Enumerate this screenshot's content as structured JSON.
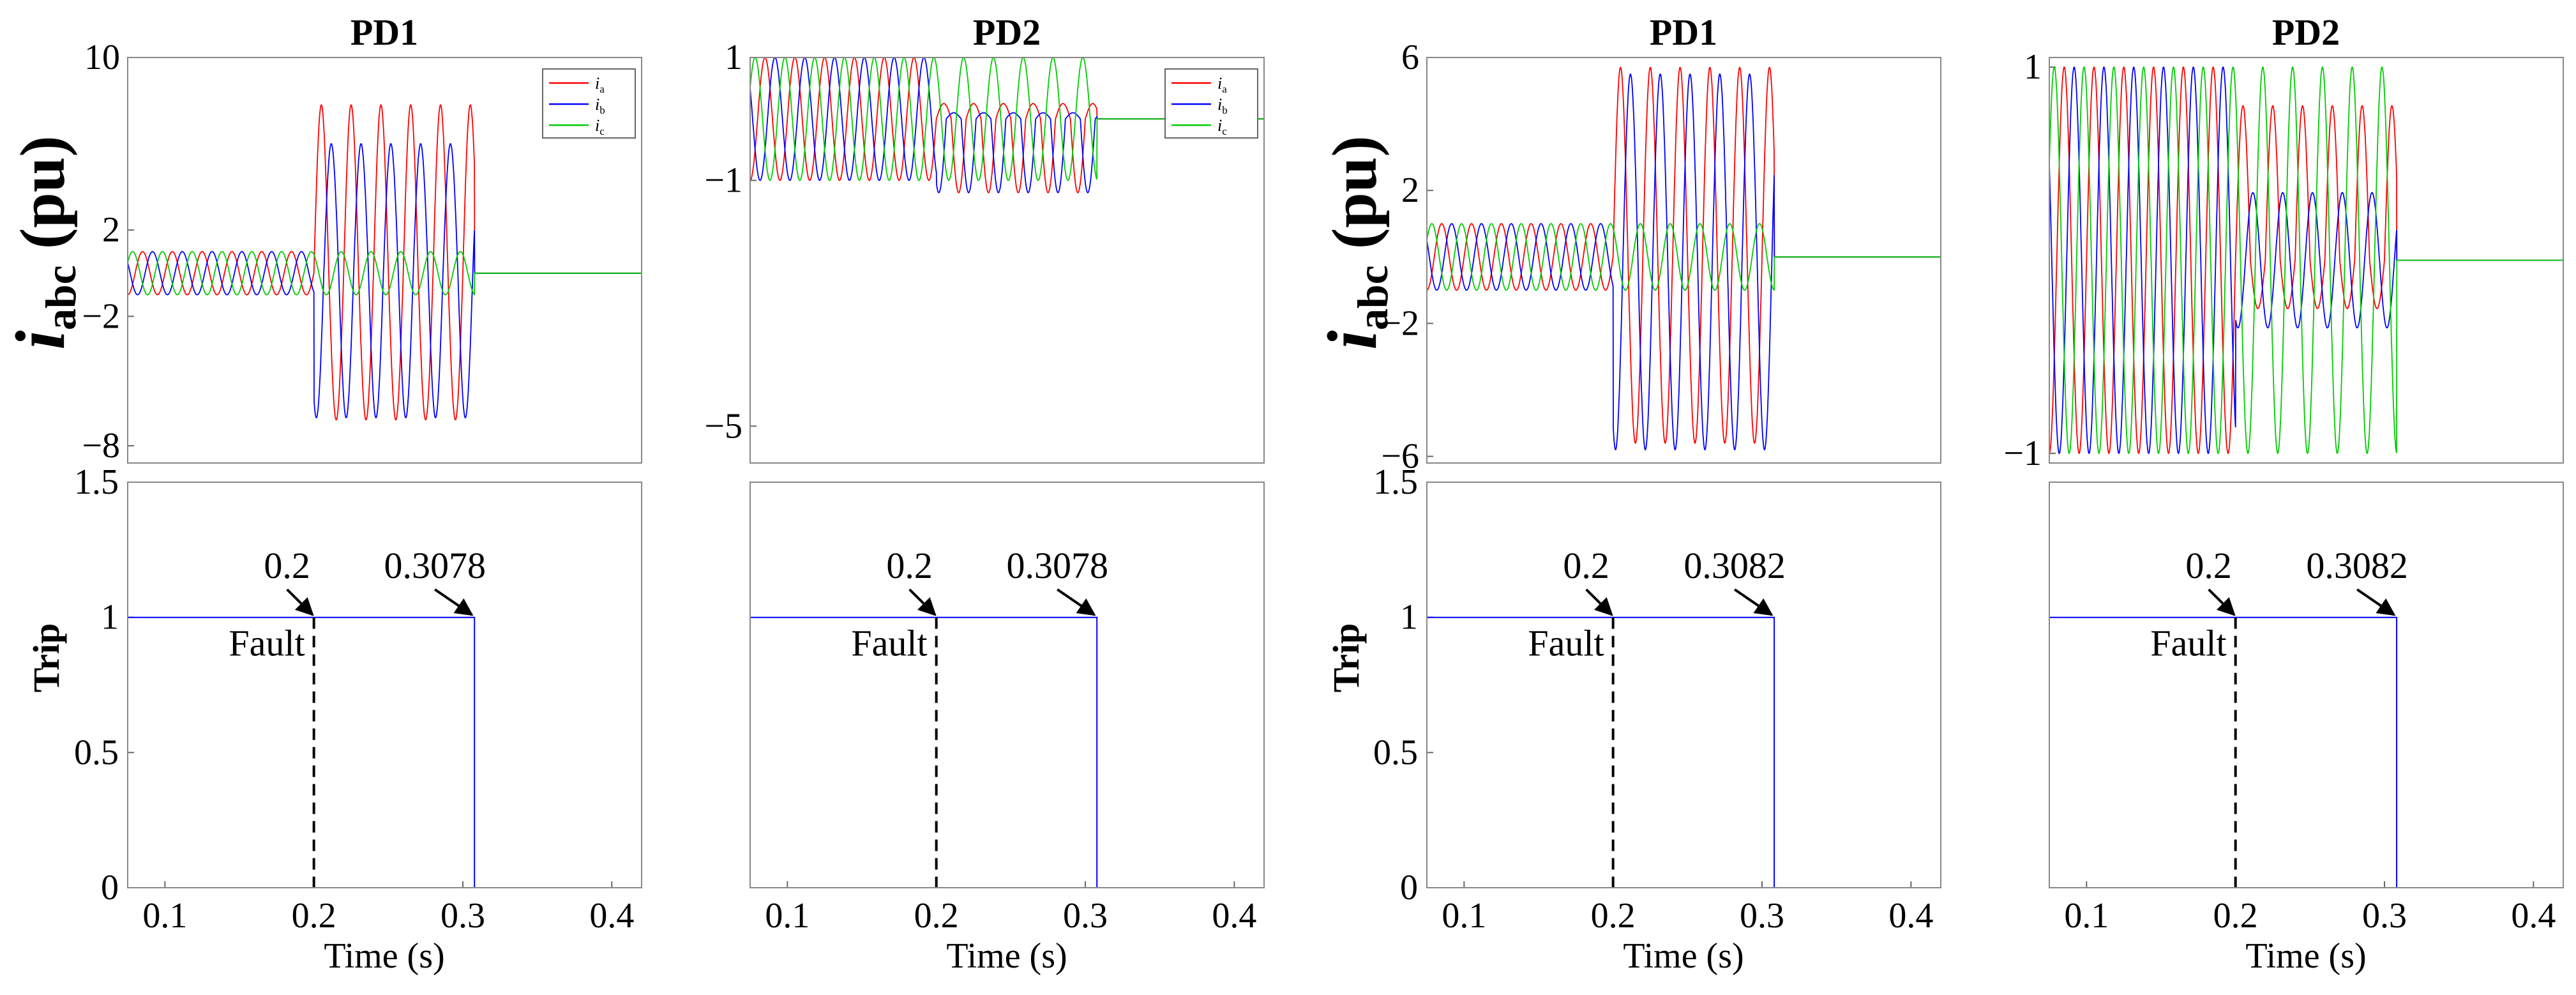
{
  "figure": {
    "ylabel_current": {
      "main": "i",
      "sub": "abc",
      "unit": " (pu)"
    },
    "ylabel_trip": "Trip",
    "xlabel": "Time (s)",
    "legend": [
      {
        "main": "i",
        "sub": "a",
        "color": "#ff0000"
      },
      {
        "main": "i",
        "sub": "b",
        "color": "#0000ff"
      },
      {
        "main": "i",
        "sub": "c",
        "color": "#00cc00"
      }
    ],
    "fault_label": "Fault",
    "colors": {
      "ia": "#ff0000",
      "ib": "#0000ff",
      "ic": "#00cc00",
      "trip": "#0000ff"
    }
  },
  "chart_data": [
    {
      "type": "line",
      "title": "PD1",
      "xlim": [
        0.075,
        0.42
      ],
      "ylim": [
        -8.8,
        10
      ],
      "yticks": [
        10,
        2,
        -2,
        -8
      ],
      "ytick_labels": [
        "10",
        "2",
        "−2",
        "−8"
      ],
      "legend": true,
      "series": [
        {
          "name": "ia",
          "pre_amp": 1.0,
          "fault_peak": 7.8,
          "fault_trough": -6.8,
          "fault_start": 0.2,
          "clear_time": 0.3078,
          "freq_hz": 50
        },
        {
          "name": "ib",
          "pre_amp": 1.0,
          "fault_peak": 6.0,
          "fault_trough": -6.7,
          "fault_start": 0.2,
          "clear_time": 0.3078,
          "freq_hz": 50
        },
        {
          "name": "ic",
          "pre_amp": 1.0,
          "fault_peak": 1.0,
          "fault_trough": -1.0,
          "fault_start": 0.2,
          "clear_time": 0.3078,
          "freq_hz": 50
        }
      ]
    },
    {
      "type": "line",
      "title": "PD2",
      "xlim": [
        0.075,
        0.42
      ],
      "ylim": [
        -5.6,
        1
      ],
      "yticks": [
        1,
        -1,
        -5
      ],
      "ytick_labels": [
        "1",
        "−1",
        "−5"
      ],
      "legend": true,
      "series": [
        {
          "name": "ia",
          "pre_amp": 1.0,
          "fault_peak": 0.25,
          "fault_trough": -1.2,
          "fault_start": 0.2,
          "clear_time": 0.3078,
          "freq_hz": 50
        },
        {
          "name": "ib",
          "pre_amp": 1.0,
          "fault_peak": 0.1,
          "fault_trough": -1.2,
          "fault_start": 0.2,
          "clear_time": 0.3078,
          "freq_hz": 50
        },
        {
          "name": "ic",
          "pre_amp": 1.0,
          "fault_peak": 1.0,
          "fault_trough": -1.0,
          "fault_start": 0.2,
          "clear_time": 0.3078,
          "freq_hz": 50
        }
      ]
    },
    {
      "type": "line",
      "title": "PD1",
      "xlim": [
        0.075,
        0.42
      ],
      "ylim": [
        -6.2,
        6
      ],
      "yticks": [
        6,
        2,
        -2,
        -6
      ],
      "ytick_labels": [
        "6",
        "2",
        "−2",
        "−6"
      ],
      "legend": false,
      "series": [
        {
          "name": "ia",
          "pre_amp": 1.0,
          "fault_peak": 5.7,
          "fault_trough": -5.6,
          "fault_start": 0.2,
          "clear_time": 0.3082,
          "freq_hz": 50
        },
        {
          "name": "ib",
          "pre_amp": 1.0,
          "fault_peak": 5.5,
          "fault_trough": -5.8,
          "fault_start": 0.2,
          "clear_time": 0.3082,
          "freq_hz": 50
        },
        {
          "name": "ic",
          "pre_amp": 1.0,
          "fault_peak": 1.0,
          "fault_trough": -1.0,
          "fault_start": 0.2,
          "clear_time": 0.3082,
          "freq_hz": 50
        }
      ]
    },
    {
      "type": "line",
      "title": "PD2",
      "xlim": [
        0.075,
        0.42
      ],
      "ylim": [
        -1.05,
        1.05
      ],
      "yticks": [
        1,
        -1
      ],
      "ytick_labels": [
        "1",
        "−1"
      ],
      "legend": false,
      "series": [
        {
          "name": "ia",
          "pre_amp": 1.0,
          "fault_peak": 0.8,
          "fault_trough": -0.25,
          "fault_start": 0.2,
          "clear_time": 0.3082,
          "freq_hz": 50
        },
        {
          "name": "ib",
          "pre_amp": 1.0,
          "fault_peak": 0.35,
          "fault_trough": -0.35,
          "fault_start": 0.2,
          "clear_time": 0.3082,
          "freq_hz": 50
        },
        {
          "name": "ic",
          "pre_amp": 1.0,
          "fault_peak": 1.0,
          "fault_trough": -1.0,
          "fault_start": 0.2,
          "clear_time": 0.3082,
          "freq_hz": 50
        }
      ]
    },
    {
      "type": "line",
      "title": "",
      "xlabel": "Time (s)",
      "ylabel": "Trip",
      "xlim": [
        0.075,
        0.42
      ],
      "ylim": [
        0,
        1.5
      ],
      "xticks": [
        0.1,
        0.2,
        0.3,
        0.4
      ],
      "xtick_labels": [
        "0.1",
        "0.2",
        "0.3",
        "0.4"
      ],
      "yticks": [
        0,
        0.5,
        1,
        1.5
      ],
      "ytick_labels": [
        "0",
        "0.5",
        "1",
        "1.5"
      ],
      "series": [
        {
          "name": "Trip",
          "x": [
            0.075,
            0.3078,
            0.3078,
            0.42
          ],
          "y": [
            1,
            1,
            0,
            0
          ]
        }
      ],
      "fault_time": 0.2,
      "trip_time": 0.3078,
      "annotations": [
        "0.2",
        "0.3078",
        "Fault"
      ]
    },
    {
      "type": "line",
      "title": "",
      "xlabel": "Time (s)",
      "ylabel": "",
      "xlim": [
        0.075,
        0.42
      ],
      "ylim": [
        0,
        1.5
      ],
      "xticks": [
        0.1,
        0.2,
        0.3,
        0.4
      ],
      "xtick_labels": [
        "0.1",
        "0.2",
        "0.3",
        "0.4"
      ],
      "yticks": [],
      "ytick_labels": [],
      "series": [
        {
          "name": "Trip",
          "x": [
            0.075,
            0.3078,
            0.3078,
            0.42
          ],
          "y": [
            1,
            1,
            0,
            0
          ]
        }
      ],
      "fault_time": 0.2,
      "trip_time": 0.3078,
      "annotations": [
        "0.2",
        "0.3078",
        "Fault"
      ]
    },
    {
      "type": "line",
      "title": "",
      "xlabel": "Time (s)",
      "ylabel": "Trip",
      "xlim": [
        0.075,
        0.42
      ],
      "ylim": [
        0,
        1.5
      ],
      "xticks": [
        0.1,
        0.2,
        0.3,
        0.4
      ],
      "xtick_labels": [
        "0.1",
        "0.2",
        "0.3",
        "0.4"
      ],
      "yticks": [
        0,
        0.5,
        1,
        1.5
      ],
      "ytick_labels": [
        "0",
        "0.5",
        "1",
        "1.5"
      ],
      "series": [
        {
          "name": "Trip",
          "x": [
            0.075,
            0.3082,
            0.3082,
            0.42
          ],
          "y": [
            1,
            1,
            0,
            0
          ]
        }
      ],
      "fault_time": 0.2,
      "trip_time": 0.3082,
      "annotations": [
        "0.2",
        "0.3082",
        "Fault"
      ]
    },
    {
      "type": "line",
      "title": "",
      "xlabel": "Time (s)",
      "ylabel": "",
      "xlim": [
        0.075,
        0.42
      ],
      "ylim": [
        0,
        1.5
      ],
      "xticks": [
        0.1,
        0.2,
        0.3,
        0.4
      ],
      "xtick_labels": [
        "0.1",
        "0.2",
        "0.3",
        "0.4"
      ],
      "yticks": [],
      "ytick_labels": [],
      "series": [
        {
          "name": "Trip",
          "x": [
            0.075,
            0.3082,
            0.3082,
            0.42
          ],
          "y": [
            1,
            1,
            0,
            0
          ]
        }
      ],
      "fault_time": 0.2,
      "trip_time": 0.3082,
      "annotations": [
        "0.2",
        "0.3082",
        "Fault"
      ]
    }
  ]
}
